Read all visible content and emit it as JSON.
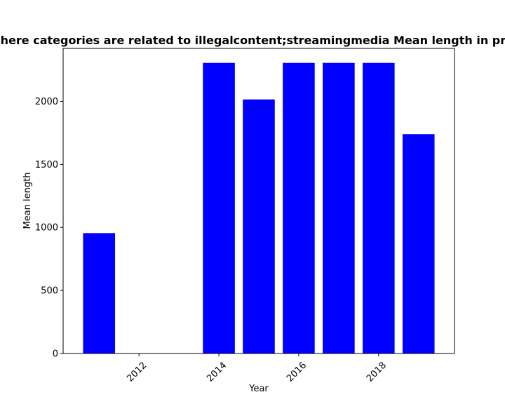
{
  "chart_data": {
    "type": "bar",
    "title": "Websites where categories are related to illegalcontent;streamingmedia Mean length in privacy policies",
    "xlabel": "Year",
    "ylabel": "Mean length",
    "x": [
      2011,
      2014,
      2015,
      2016,
      2017,
      2018,
      2019
    ],
    "values": [
      955,
      2305,
      2015,
      2305,
      2305,
      2305,
      1740
    ],
    "xlim": [
      2010.1,
      2019.9
    ],
    "ylim": [
      0,
      2420
    ],
    "xticks": [
      2012,
      2014,
      2016,
      2018
    ],
    "xtick_labels": [
      "2012",
      "2014",
      "2016",
      "2018"
    ],
    "yticks": [
      0,
      500,
      1000,
      1500,
      2000
    ],
    "ytick_labels": [
      "0",
      "500",
      "1000",
      "1500",
      "2000"
    ],
    "bar_color": "#0000ff",
    "grid": false,
    "legend": "none"
  }
}
